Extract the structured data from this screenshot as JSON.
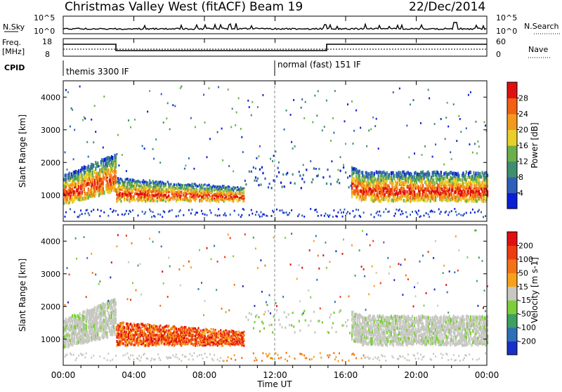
{
  "header": {
    "station": "Christmas Valley West (fitACF)",
    "beam": "Beam 19",
    "date": "22/Dec/2014"
  },
  "strip_panels": {
    "nsky": {
      "label": "N.Sky",
      "ticks": [
        "10^5",
        "10^0"
      ],
      "right_ticks": [
        "10^5",
        "10^0"
      ],
      "right_label": "N.Search"
    },
    "freq": {
      "label_lines": [
        "Freq.",
        "[MHz]"
      ],
      "ticks": [
        "18",
        "8"
      ],
      "right_ticks": [
        "60",
        "0"
      ],
      "right_label": "Nave"
    },
    "cpid": {
      "label": "CPID",
      "modes": [
        {
          "name": "themis 3300 IF",
          "start": "00:00",
          "end": "12:00"
        },
        {
          "name": "normal (fast) 151 IF",
          "start": "12:00",
          "end": "24:00"
        }
      ]
    }
  },
  "chart_data": [
    {
      "type": "heatmap",
      "panel": "power",
      "xlabel": "Time UT",
      "ylabel": "Slant Range [km]",
      "ylim": [
        200,
        4500
      ],
      "y_ticks": [
        1000,
        2000,
        3000,
        4000
      ],
      "colorbar": {
        "label": "Power [dB]",
        "ticks": [
          4,
          8,
          12,
          16,
          20,
          24,
          28
        ],
        "colors": [
          "#0a1fd6",
          "#2f5fb8",
          "#3f8f6e",
          "#6bb04b",
          "#e8cf2a",
          "#f39a1e",
          "#f26012",
          "#e01010"
        ]
      }
    },
    {
      "type": "heatmap",
      "panel": "velocity",
      "xlabel": "Time UT",
      "ylabel": "Slant Range [km]",
      "ylim": [
        200,
        4500
      ],
      "y_ticks": [
        1000,
        2000,
        3000,
        4000
      ],
      "colorbar": {
        "label": "Velocity [m s-1]",
        "ticks": [
          200,
          100,
          50,
          15,
          -15,
          -50,
          -100,
          -200
        ],
        "colors": [
          "#1a2fc8",
          "#2f6fb8",
          "#3f9f5e",
          "#7ccf3a",
          "#c8c8c2",
          "#f7a11a",
          "#f27315",
          "#ee3c10",
          "#e01010"
        ]
      }
    }
  ],
  "time_axis": {
    "ticks": [
      "00:00",
      "04:00",
      "08:00",
      "12:00",
      "16:00",
      "20:00",
      "00:00"
    ],
    "label": "Time UT"
  }
}
